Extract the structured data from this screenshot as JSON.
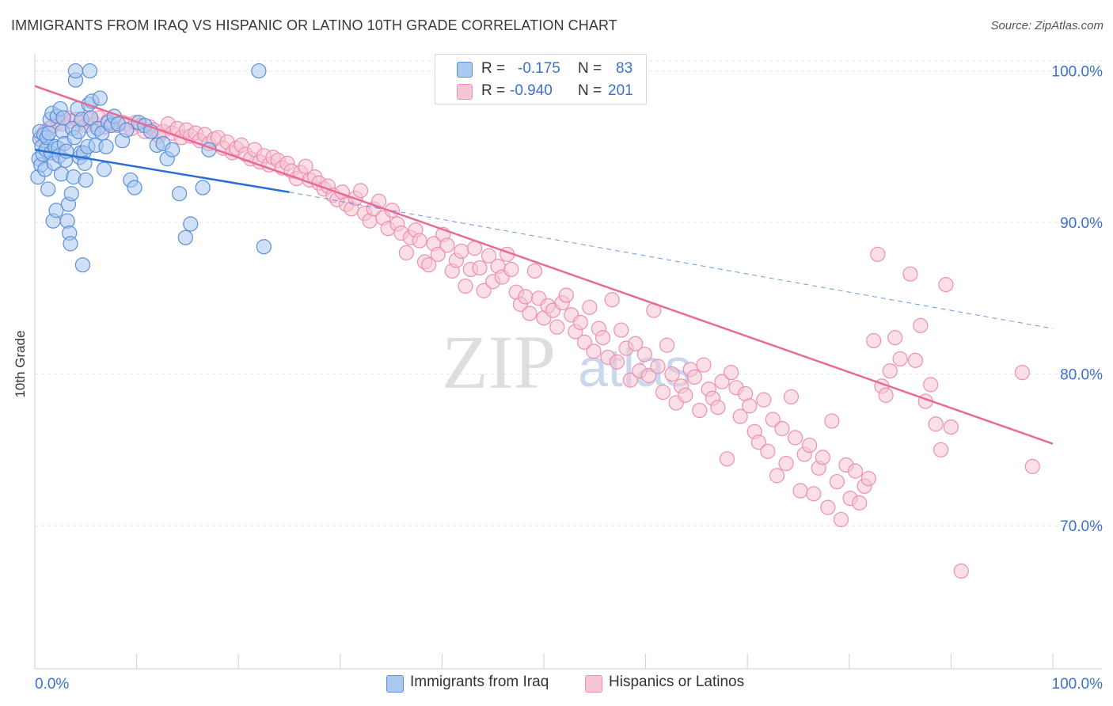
{
  "title": "IMMIGRANTS FROM IRAQ VS HISPANIC OR LATINO 10TH GRADE CORRELATION CHART",
  "source": "Source: ZipAtlas.com",
  "watermark": {
    "zip": "ZIP",
    "atlas": "atlas"
  },
  "colors": {
    "blue_fill": "#aac8f0",
    "blue_stroke": "#5b8fd8",
    "blue_line": "#2a6fd6",
    "pink_fill": "#f6c4d4",
    "pink_stroke": "#ee8fae",
    "pink_line": "#e96a97",
    "axis_text": "#3b6fd4",
    "grid": "#e4e4e4"
  },
  "legend": {
    "rows": [
      {
        "r_label": "R =",
        "r_value": "-0.175",
        "n_label": "N =",
        "n_value": "83",
        "series": "blue"
      },
      {
        "r_label": "R =",
        "r_value": "-0.940",
        "n_label": "N =",
        "n_value": "201",
        "series": "pink"
      }
    ]
  },
  "bottom_legend": [
    "Immigrants from Iraq",
    "Hispanics or Latinos"
  ],
  "chart_data": {
    "type": "scatter",
    "title": "IMMIGRANTS FROM IRAQ VS HISPANIC OR LATINO 10TH GRADE CORRELATION CHART",
    "xlabel": "",
    "ylabel": "10th Grade",
    "xlim": [
      0,
      100
    ],
    "ylim": [
      59,
      101.5
    ],
    "x_tick_labels": [
      "0.0%",
      "100.0%"
    ],
    "y_tick_values": [
      70,
      80,
      90,
      100
    ],
    "y_tick_labels": [
      "70.0%",
      "80.0%",
      "90.0%",
      "100.0%"
    ],
    "grid": true,
    "legend_placement": "top-center",
    "series": [
      {
        "name": "Immigrants from Iraq",
        "color": "blue",
        "trend": {
          "x": [
            0,
            25
          ],
          "y": [
            94.8,
            92.0
          ],
          "dashed_extension_to": [
            100,
            83.0
          ]
        },
        "points": [
          [
            0.3,
            93.0
          ],
          [
            0.4,
            94.2
          ],
          [
            0.5,
            95.5
          ],
          [
            0.5,
            96.0
          ],
          [
            0.6,
            93.8
          ],
          [
            0.7,
            95.0
          ],
          [
            0.8,
            94.5
          ],
          [
            0.9,
            95.8
          ],
          [
            1.0,
            93.5
          ],
          [
            1.1,
            94.8
          ],
          [
            1.2,
            95.6
          ],
          [
            1.3,
            92.2
          ],
          [
            1.4,
            95.9
          ],
          [
            1.5,
            96.8
          ],
          [
            1.6,
            94.6
          ],
          [
            1.7,
            97.2
          ],
          [
            1.8,
            90.1
          ],
          [
            1.9,
            93.9
          ],
          [
            2.0,
            95.0
          ],
          [
            2.1,
            90.8
          ],
          [
            2.2,
            97.0
          ],
          [
            2.3,
            94.9
          ],
          [
            2.4,
            94.4
          ],
          [
            2.5,
            97.5
          ],
          [
            2.6,
            93.2
          ],
          [
            2.7,
            96.0
          ],
          [
            2.8,
            96.9
          ],
          [
            2.9,
            95.2
          ],
          [
            3.0,
            94.1
          ],
          [
            3.1,
            94.7
          ],
          [
            3.2,
            90.1
          ],
          [
            3.3,
            91.2
          ],
          [
            3.4,
            89.3
          ],
          [
            3.5,
            88.6
          ],
          [
            3.6,
            91.9
          ],
          [
            3.7,
            96.2
          ],
          [
            3.8,
            93.0
          ],
          [
            3.9,
            95.6
          ],
          [
            4.0,
            99.4
          ],
          [
            4.0,
            100.0
          ],
          [
            4.2,
            97.5
          ],
          [
            4.3,
            96.0
          ],
          [
            4.4,
            94.3
          ],
          [
            4.5,
            94.6
          ],
          [
            4.6,
            96.8
          ],
          [
            4.7,
            87.2
          ],
          [
            4.8,
            94.6
          ],
          [
            4.9,
            93.9
          ],
          [
            5.0,
            92.8
          ],
          [
            5.2,
            95.0
          ],
          [
            5.3,
            97.8
          ],
          [
            5.4,
            100.0
          ],
          [
            5.5,
            96.9
          ],
          [
            5.6,
            98.0
          ],
          [
            5.8,
            96.0
          ],
          [
            6.0,
            95.1
          ],
          [
            6.2,
            96.2
          ],
          [
            6.4,
            98.2
          ],
          [
            6.6,
            95.9
          ],
          [
            6.8,
            93.5
          ],
          [
            7.0,
            95.0
          ],
          [
            7.2,
            96.6
          ],
          [
            7.5,
            96.4
          ],
          [
            7.8,
            97.0
          ],
          [
            8.2,
            96.5
          ],
          [
            8.6,
            95.4
          ],
          [
            9.0,
            96.1
          ],
          [
            9.4,
            92.8
          ],
          [
            9.8,
            92.3
          ],
          [
            10.2,
            96.6
          ],
          [
            10.8,
            96.4
          ],
          [
            11.4,
            96.0
          ],
          [
            12.0,
            95.1
          ],
          [
            12.6,
            95.2
          ],
          [
            13.0,
            94.2
          ],
          [
            13.5,
            94.8
          ],
          [
            14.2,
            91.9
          ],
          [
            14.8,
            89.0
          ],
          [
            15.3,
            89.9
          ],
          [
            16.5,
            92.3
          ],
          [
            17.1,
            94.8
          ],
          [
            22.0,
            100.0
          ],
          [
            22.5,
            88.4
          ]
        ]
      },
      {
        "name": "Hispanics or Latinos",
        "color": "pink",
        "trend": {
          "x": [
            0,
            100
          ],
          "y": [
            99.0,
            75.4
          ]
        },
        "points": [
          [
            0.6,
            95.7
          ],
          [
            1.0,
            96.0
          ],
          [
            1.4,
            96.2
          ],
          [
            1.8,
            96.4
          ],
          [
            2.3,
            96.6
          ],
          [
            2.7,
            96.5
          ],
          [
            3.2,
            96.9
          ],
          [
            3.6,
            96.7
          ],
          [
            4.1,
            96.8
          ],
          [
            4.5,
            96.6
          ],
          [
            5.0,
            96.4
          ],
          [
            5.4,
            96.8
          ],
          [
            5.9,
            96.5
          ],
          [
            6.3,
            96.9
          ],
          [
            6.8,
            96.3
          ],
          [
            7.2,
            96.7
          ],
          [
            7.7,
            96.5
          ],
          [
            8.1,
            96.4
          ],
          [
            8.6,
            96.6
          ],
          [
            9.0,
            96.5
          ],
          [
            9.5,
            96.2
          ],
          [
            9.9,
            96.6
          ],
          [
            10.4,
            96.4
          ],
          [
            10.8,
            96.0
          ],
          [
            11.3,
            96.3
          ],
          [
            11.7,
            96.1
          ],
          [
            12.2,
            95.7
          ],
          [
            12.6,
            96.0
          ],
          [
            13.1,
            96.5
          ],
          [
            13.5,
            95.9
          ],
          [
            14.0,
            96.2
          ],
          [
            14.4,
            95.6
          ],
          [
            14.9,
            96.1
          ],
          [
            15.3,
            95.7
          ],
          [
            15.8,
            95.9
          ],
          [
            16.2,
            95.4
          ],
          [
            16.7,
            95.8
          ],
          [
            17.1,
            95.2
          ],
          [
            17.6,
            95.5
          ],
          [
            18.0,
            95.6
          ],
          [
            18.5,
            94.9
          ],
          [
            18.9,
            95.3
          ],
          [
            19.4,
            94.6
          ],
          [
            19.8,
            94.9
          ],
          [
            20.3,
            95.1
          ],
          [
            20.7,
            94.5
          ],
          [
            21.2,
            94.2
          ],
          [
            21.6,
            94.8
          ],
          [
            22.1,
            94.0
          ],
          [
            22.5,
            94.4
          ],
          [
            23.0,
            93.8
          ],
          [
            23.4,
            94.3
          ],
          [
            23.9,
            94.1
          ],
          [
            24.3,
            93.6
          ],
          [
            24.8,
            93.9
          ],
          [
            25.2,
            93.4
          ],
          [
            25.7,
            92.9
          ],
          [
            26.1,
            93.3
          ],
          [
            26.6,
            93.7
          ],
          [
            27.0,
            92.8
          ],
          [
            27.5,
            93.0
          ],
          [
            27.9,
            92.6
          ],
          [
            28.4,
            92.2
          ],
          [
            28.8,
            92.4
          ],
          [
            29.3,
            91.8
          ],
          [
            29.7,
            91.5
          ],
          [
            30.2,
            92.0
          ],
          [
            30.6,
            91.2
          ],
          [
            31.1,
            90.9
          ],
          [
            31.5,
            91.6
          ],
          [
            32.0,
            92.1
          ],
          [
            32.4,
            90.6
          ],
          [
            32.9,
            90.1
          ],
          [
            33.3,
            90.9
          ],
          [
            33.8,
            91.4
          ],
          [
            34.2,
            90.3
          ],
          [
            34.7,
            89.6
          ],
          [
            35.1,
            90.8
          ],
          [
            35.6,
            89.9
          ],
          [
            36.0,
            89.3
          ],
          [
            36.5,
            88.0
          ],
          [
            36.9,
            89.0
          ],
          [
            37.4,
            89.5
          ],
          [
            37.8,
            88.8
          ],
          [
            38.3,
            87.4
          ],
          [
            38.7,
            87.2
          ],
          [
            39.2,
            88.6
          ],
          [
            39.6,
            87.9
          ],
          [
            40.1,
            89.2
          ],
          [
            40.5,
            88.5
          ],
          [
            41.0,
            86.8
          ],
          [
            41.4,
            87.5
          ],
          [
            41.9,
            88.1
          ],
          [
            42.3,
            85.8
          ],
          [
            42.8,
            86.9
          ],
          [
            43.2,
            88.3
          ],
          [
            43.7,
            87.0
          ],
          [
            44.1,
            85.5
          ],
          [
            44.6,
            87.8
          ],
          [
            45.0,
            86.1
          ],
          [
            45.5,
            87.1
          ],
          [
            45.9,
            86.4
          ],
          [
            46.4,
            87.9
          ],
          [
            46.8,
            86.9
          ],
          [
            47.3,
            85.4
          ],
          [
            47.7,
            84.6
          ],
          [
            48.2,
            85.1
          ],
          [
            48.6,
            84.0
          ],
          [
            49.1,
            86.8
          ],
          [
            49.5,
            85.0
          ],
          [
            50.0,
            83.7
          ],
          [
            50.4,
            84.5
          ],
          [
            50.9,
            84.2
          ],
          [
            51.3,
            83.1
          ],
          [
            51.8,
            84.7
          ],
          [
            52.2,
            85.2
          ],
          [
            52.7,
            83.9
          ],
          [
            53.1,
            82.8
          ],
          [
            53.6,
            83.4
          ],
          [
            54.0,
            82.1
          ],
          [
            54.5,
            84.4
          ],
          [
            54.9,
            81.5
          ],
          [
            55.4,
            83.0
          ],
          [
            55.8,
            82.4
          ],
          [
            56.3,
            81.1
          ],
          [
            56.7,
            84.9
          ],
          [
            57.2,
            80.8
          ],
          [
            57.6,
            82.9
          ],
          [
            58.1,
            81.7
          ],
          [
            58.5,
            79.6
          ],
          [
            59.0,
            82.0
          ],
          [
            59.4,
            80.2
          ],
          [
            59.9,
            81.3
          ],
          [
            60.3,
            79.9
          ],
          [
            60.8,
            84.2
          ],
          [
            61.2,
            80.5
          ],
          [
            61.7,
            78.8
          ],
          [
            62.1,
            81.9
          ],
          [
            62.6,
            80.0
          ],
          [
            63.0,
            78.1
          ],
          [
            63.5,
            79.2
          ],
          [
            63.9,
            78.6
          ],
          [
            64.4,
            80.3
          ],
          [
            64.8,
            79.8
          ],
          [
            65.3,
            77.6
          ],
          [
            65.7,
            80.6
          ],
          [
            66.2,
            79.0
          ],
          [
            66.6,
            78.4
          ],
          [
            67.1,
            77.8
          ],
          [
            67.5,
            79.5
          ],
          [
            68.0,
            74.4
          ],
          [
            68.4,
            80.1
          ],
          [
            68.9,
            79.1
          ],
          [
            69.3,
            77.2
          ],
          [
            69.8,
            78.7
          ],
          [
            70.2,
            77.9
          ],
          [
            70.7,
            76.2
          ],
          [
            71.1,
            75.5
          ],
          [
            71.6,
            78.3
          ],
          [
            72.0,
            74.9
          ],
          [
            72.5,
            77.0
          ],
          [
            72.9,
            73.3
          ],
          [
            73.4,
            76.4
          ],
          [
            73.8,
            74.1
          ],
          [
            74.3,
            78.5
          ],
          [
            74.7,
            75.8
          ],
          [
            75.2,
            72.3
          ],
          [
            75.6,
            74.7
          ],
          [
            76.1,
            75.3
          ],
          [
            76.5,
            72.1
          ],
          [
            77.0,
            73.8
          ],
          [
            77.4,
            74.5
          ],
          [
            77.9,
            71.2
          ],
          [
            78.3,
            76.9
          ],
          [
            78.8,
            72.9
          ],
          [
            79.2,
            70.4
          ],
          [
            79.7,
            74.0
          ],
          [
            80.1,
            71.8
          ],
          [
            80.6,
            73.6
          ],
          [
            81.0,
            71.5
          ],
          [
            81.5,
            72.6
          ],
          [
            81.9,
            73.1
          ],
          [
            82.4,
            82.2
          ],
          [
            82.8,
            87.9
          ],
          [
            83.2,
            79.2
          ],
          [
            83.6,
            78.6
          ],
          [
            84.0,
            80.2
          ],
          [
            84.5,
            82.4
          ],
          [
            85.0,
            81.0
          ],
          [
            86.0,
            86.6
          ],
          [
            86.5,
            80.9
          ],
          [
            87.0,
            83.2
          ],
          [
            87.5,
            78.2
          ],
          [
            88.0,
            79.3
          ],
          [
            88.5,
            76.7
          ],
          [
            89.0,
            75.0
          ],
          [
            89.5,
            85.9
          ],
          [
            90.0,
            76.5
          ],
          [
            91.0,
            67.0
          ],
          [
            97.0,
            80.1
          ],
          [
            98.0,
            73.9
          ]
        ]
      }
    ]
  },
  "axis": {
    "x_left_label": "0.0%",
    "x_right_label": "100.0%"
  }
}
